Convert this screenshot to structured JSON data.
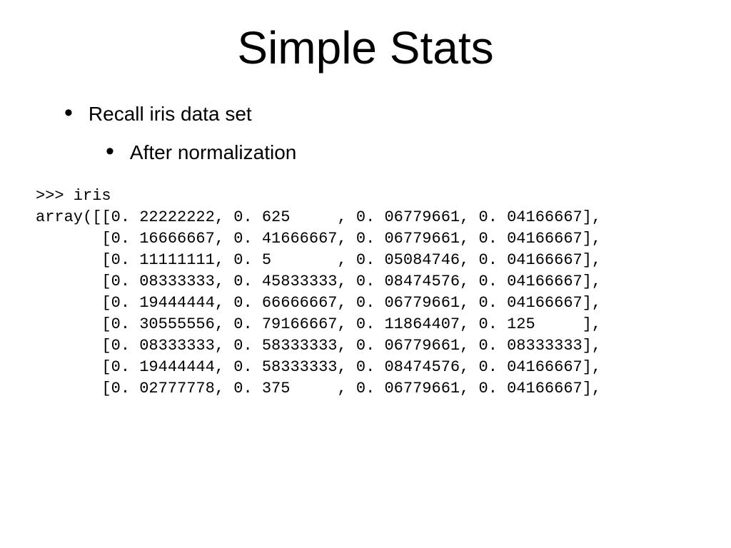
{
  "title": "Simple Stats",
  "bullet1": "Recall iris data set",
  "bullet2": "After normalization",
  "code": {
    "line0": ">>> iris",
    "prefix": "array([",
    "rows": [
      [
        "[0. 22222222,",
        "0. 625     ,",
        "0. 06779661,",
        "0. 04166667],"
      ],
      [
        "[0. 16666667,",
        "0. 41666667,",
        "0. 06779661,",
        "0. 04166667],"
      ],
      [
        "[0. 11111111,",
        "0. 5       ,",
        "0. 05084746,",
        "0. 04166667],"
      ],
      [
        "[0. 08333333,",
        "0. 45833333,",
        "0. 08474576,",
        "0. 04166667],"
      ],
      [
        "[0. 19444444,",
        "0. 66666667,",
        "0. 06779661,",
        "0. 04166667],"
      ],
      [
        "[0. 30555556,",
        "0. 79166667,",
        "0. 11864407,",
        "0. 125     ],"
      ],
      [
        "[0. 08333333,",
        "0. 58333333,",
        "0. 06779661,",
        "0. 08333333],"
      ],
      [
        "[0. 19444444,",
        "0. 58333333,",
        "0. 08474576,",
        "0. 04166667],"
      ],
      [
        "[0. 02777778,",
        "0. 375     ,",
        "0. 06779661,",
        "0. 04166667],"
      ]
    ],
    "indent_first": "       ",
    "col_sep": " "
  },
  "style": {
    "background_color": "#ffffff",
    "text_color": "#000000",
    "title_fontsize": 64,
    "bullet_fontsize": 28,
    "code_font": "Courier New",
    "code_fontsize": 22,
    "code_lineheight": 30
  }
}
